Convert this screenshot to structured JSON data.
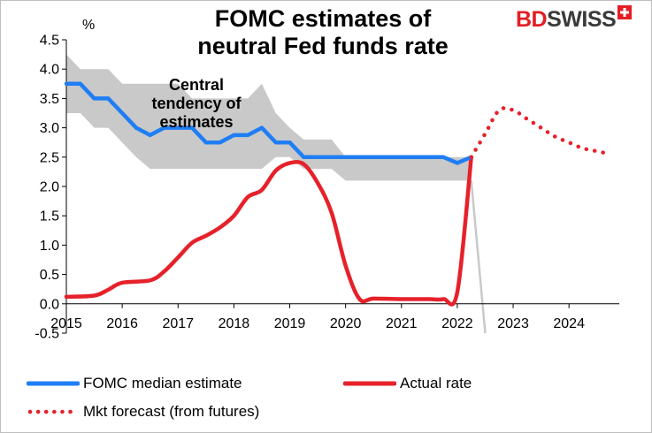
{
  "title_line1": "FOMC estimates of",
  "title_line2": "neutral Fed funds rate",
  "logo": {
    "bd": "BD",
    "swiss": "SWISS"
  },
  "colors": {
    "median": "#1f7ef5",
    "actual": "#e6212a",
    "forecast": "#e6212a",
    "band": "#c9c9c9",
    "band_edge": "#c9c9c9",
    "logo_red": "#e41d24"
  },
  "chart_data": {
    "type": "line",
    "title": "FOMC estimates of neutral Fed funds rate",
    "ylabel": "%",
    "xlim": [
      2015,
      2024.9
    ],
    "ylim": [
      -0.5,
      4.5
    ],
    "xticks": [
      2015,
      2016,
      2017,
      2018,
      2019,
      2020,
      2021,
      2022,
      2023,
      2024
    ],
    "yticks": [
      -0.5,
      0.0,
      0.5,
      1.0,
      1.5,
      2.0,
      2.5,
      3.0,
      3.5,
      4.0,
      4.5
    ],
    "annotation": [
      "Central",
      "tendency of",
      "estimates"
    ],
    "grid": false,
    "legend_position": "bottom",
    "series": [
      {
        "name": "FOMC median estimate",
        "kind": "line",
        "x": [
          2015.0,
          2015.25,
          2015.5,
          2015.75,
          2016.0,
          2016.25,
          2016.5,
          2016.75,
          2017.0,
          2017.25,
          2017.5,
          2017.75,
          2018.0,
          2018.25,
          2018.5,
          2018.75,
          2019.0,
          2019.25,
          2019.5,
          2019.75,
          2020.0,
          2020.25,
          2020.5,
          2020.75,
          2021.0,
          2021.25,
          2021.5,
          2021.75,
          2022.0,
          2022.25
        ],
        "y": [
          3.75,
          3.75,
          3.5,
          3.5,
          3.25,
          3.0,
          2.875,
          3.0,
          3.0,
          3.0,
          2.75,
          2.75,
          2.875,
          2.875,
          3.0,
          2.75,
          2.75,
          2.5,
          2.5,
          2.5,
          2.5,
          2.5,
          2.5,
          2.5,
          2.5,
          2.5,
          2.5,
          2.5,
          2.4,
          2.5
        ]
      },
      {
        "name": "Central tendency of estimates",
        "kind": "band",
        "x": [
          2015.0,
          2015.25,
          2015.5,
          2015.75,
          2016.0,
          2016.25,
          2016.5,
          2016.75,
          2017.0,
          2017.25,
          2017.5,
          2017.75,
          2018.0,
          2018.25,
          2018.5,
          2018.75,
          2019.0,
          2019.25,
          2019.5,
          2019.75,
          2020.0,
          2020.25,
          2020.5,
          2020.75,
          2021.0,
          2021.25,
          2021.5,
          2021.75,
          2022.0,
          2022.25,
          2022.5
        ],
        "upper": [
          4.25,
          4.0,
          4.0,
          4.0,
          3.75,
          3.75,
          3.75,
          3.75,
          3.75,
          3.5,
          3.5,
          3.5,
          3.5,
          3.5,
          3.75,
          3.25,
          3.0,
          2.8,
          2.8,
          2.8,
          2.5,
          2.5,
          2.5,
          2.5,
          2.5,
          2.5,
          2.5,
          2.5,
          2.5,
          2.5,
          -0.5
        ],
        "lower": [
          3.25,
          3.25,
          3.0,
          3.0,
          2.75,
          2.5,
          2.3,
          2.3,
          2.3,
          2.3,
          2.3,
          2.3,
          2.3,
          2.3,
          2.3,
          2.5,
          2.5,
          2.3,
          2.3,
          2.3,
          2.1,
          2.1,
          2.1,
          2.1,
          2.1,
          2.1,
          2.1,
          2.1,
          2.1,
          2.1,
          -0.5
        ]
      },
      {
        "name": "Actual rate",
        "kind": "line",
        "x": [
          2015.0,
          2015.5,
          2015.75,
          2016.0,
          2016.5,
          2016.75,
          2017.0,
          2017.25,
          2017.5,
          2017.75,
          2018.0,
          2018.25,
          2018.5,
          2018.75,
          2019.0,
          2019.25,
          2019.5,
          2019.75,
          2020.0,
          2020.25,
          2020.5,
          2021.0,
          2021.5,
          2021.75,
          2022.0,
          2022.25
        ],
        "y": [
          0.12,
          0.14,
          0.24,
          0.36,
          0.4,
          0.55,
          0.79,
          1.04,
          1.16,
          1.3,
          1.5,
          1.82,
          1.94,
          2.27,
          2.4,
          2.38,
          2.06,
          1.55,
          0.65,
          0.08,
          0.09,
          0.08,
          0.08,
          0.08,
          0.2,
          2.5
        ]
      },
      {
        "name": "Mkt forecast (from futures)",
        "kind": "dotted",
        "x": [
          2022.25,
          2022.5,
          2022.75,
          2023.0,
          2023.25,
          2023.5,
          2023.75,
          2024.0,
          2024.25,
          2024.5,
          2024.75
        ],
        "y": [
          2.5,
          2.9,
          3.3,
          3.3,
          3.15,
          3.0,
          2.85,
          2.75,
          2.65,
          2.6,
          2.55
        ]
      }
    ]
  },
  "legend": {
    "median": "FOMC median estimate",
    "actual": "Actual rate",
    "forecast": "Mkt forecast (from futures)"
  }
}
